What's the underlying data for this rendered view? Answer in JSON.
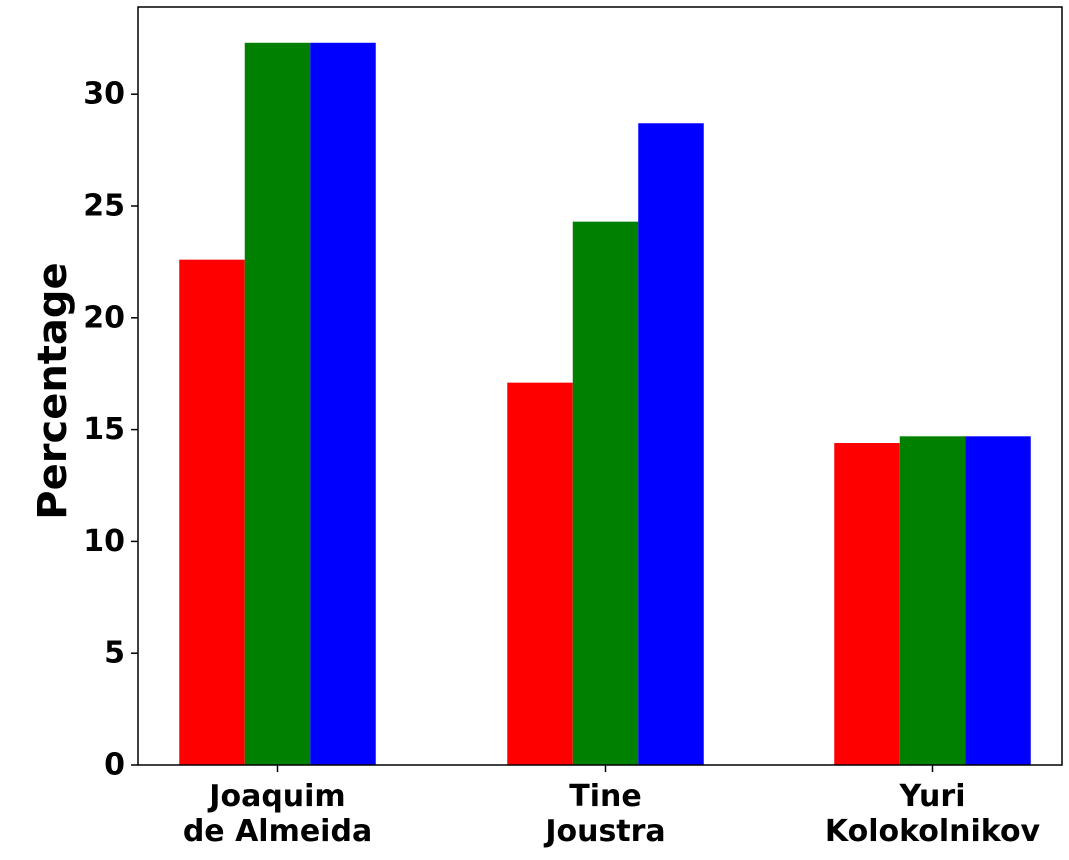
{
  "chart_data": {
    "type": "bar",
    "title": "",
    "xlabel": "",
    "ylabel": "Percentage",
    "categories": [
      [
        "Joaquim",
        "de Almeida"
      ],
      [
        "Tine",
        "Joustra"
      ],
      [
        "Yuri",
        "Kolokolnikov"
      ]
    ],
    "series": [
      {
        "color": "#ff0000",
        "values": [
          22.6,
          17.1,
          14.4
        ]
      },
      {
        "color": "#008000",
        "values": [
          32.3,
          24.3,
          14.7
        ]
      },
      {
        "color": "#0000ff",
        "values": [
          32.3,
          28.7,
          14.7
        ]
      }
    ],
    "yticks": [
      0,
      5,
      10,
      15,
      20,
      25,
      30
    ],
    "ylim": [
      0,
      33.9
    ],
    "grid": false,
    "legend": "none"
  }
}
